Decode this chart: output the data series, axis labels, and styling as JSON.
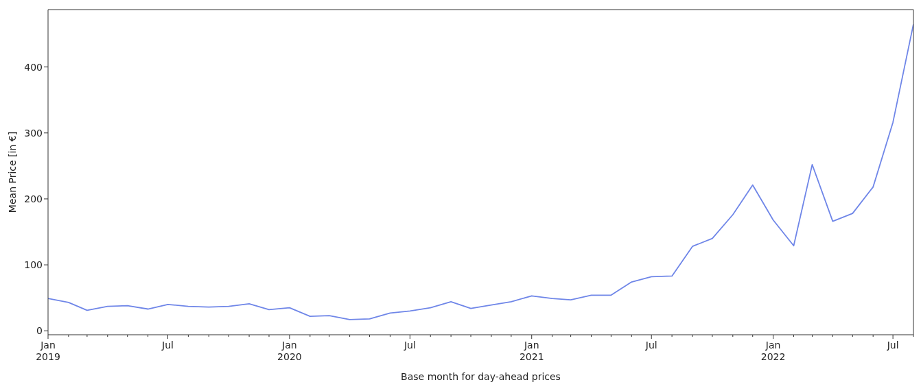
{
  "chart_data": {
    "type": "line",
    "xlabel": "Base month for day-ahead prices",
    "ylabel": "Mean Price [in €]",
    "x": [
      "2019-01",
      "2019-02",
      "2019-03",
      "2019-04",
      "2019-05",
      "2019-06",
      "2019-07",
      "2019-08",
      "2019-09",
      "2019-10",
      "2019-11",
      "2019-12",
      "2020-01",
      "2020-02",
      "2020-03",
      "2020-04",
      "2020-05",
      "2020-06",
      "2020-07",
      "2020-08",
      "2020-09",
      "2020-10",
      "2020-11",
      "2020-12",
      "2021-01",
      "2021-02",
      "2021-03",
      "2021-04",
      "2021-05",
      "2021-06",
      "2021-07",
      "2021-08",
      "2021-09",
      "2021-10",
      "2021-11",
      "2021-12",
      "2022-01",
      "2022-02",
      "2022-03",
      "2022-04",
      "2022-05",
      "2022-06",
      "2022-07",
      "2022-08"
    ],
    "series": [
      {
        "color": "#6f86e8",
        "values": [
          49,
          43,
          31,
          37,
          38,
          33,
          40,
          37,
          36,
          37,
          41,
          32,
          35,
          22,
          23,
          17,
          18,
          27,
          30,
          35,
          44,
          34,
          39,
          44,
          53,
          49,
          47,
          54,
          54,
          74,
          82,
          83,
          128,
          140,
          176,
          221,
          168,
          129,
          252,
          166,
          178,
          218,
          316,
          465
        ]
      }
    ],
    "xlim": [
      "2019-01",
      "2022-08"
    ],
    "xticks": [
      {
        "value": "2019-01",
        "label": "Jan\n2019"
      },
      {
        "value": "2019-02",
        "label": null
      },
      {
        "value": "2019-03",
        "label": null
      },
      {
        "value": "2019-04",
        "label": null
      },
      {
        "value": "2019-05",
        "label": null
      },
      {
        "value": "2019-06",
        "label": null
      },
      {
        "value": "2019-07",
        "label": "Jul"
      },
      {
        "value": "2019-08",
        "label": null
      },
      {
        "value": "2019-09",
        "label": null
      },
      {
        "value": "2019-10",
        "label": null
      },
      {
        "value": "2019-11",
        "label": null
      },
      {
        "value": "2019-12",
        "label": null
      },
      {
        "value": "2020-01",
        "label": "Jan\n2020"
      },
      {
        "value": "2020-02",
        "label": null
      },
      {
        "value": "2020-03",
        "label": null
      },
      {
        "value": "2020-04",
        "label": null
      },
      {
        "value": "2020-05",
        "label": null
      },
      {
        "value": "2020-06",
        "label": null
      },
      {
        "value": "2020-07",
        "label": "Jul"
      },
      {
        "value": "2020-08",
        "label": null
      },
      {
        "value": "2020-09",
        "label": null
      },
      {
        "value": "2020-10",
        "label": null
      },
      {
        "value": "2020-11",
        "label": null
      },
      {
        "value": "2020-12",
        "label": null
      },
      {
        "value": "2021-01",
        "label": "Jan\n2021"
      },
      {
        "value": "2021-02",
        "label": null
      },
      {
        "value": "2021-03",
        "label": null
      },
      {
        "value": "2021-04",
        "label": null
      },
      {
        "value": "2021-05",
        "label": null
      },
      {
        "value": "2021-06",
        "label": null
      },
      {
        "value": "2021-07",
        "label": "Jul"
      },
      {
        "value": "2021-08",
        "label": null
      },
      {
        "value": "2021-09",
        "label": null
      },
      {
        "value": "2021-10",
        "label": null
      },
      {
        "value": "2021-11",
        "label": null
      },
      {
        "value": "2021-12",
        "label": null
      },
      {
        "value": "2022-01",
        "label": "Jan\n2022"
      },
      {
        "value": "2022-02",
        "label": null
      },
      {
        "value": "2022-03",
        "label": null
      },
      {
        "value": "2022-04",
        "label": null
      },
      {
        "value": "2022-05",
        "label": null
      },
      {
        "value": "2022-06",
        "label": null
      },
      {
        "value": "2022-07",
        "label": "Jul"
      },
      {
        "value": "2022-08",
        "label": null
      }
    ],
    "ylim": [
      -6,
      487
    ],
    "yticks": [
      0,
      100,
      200,
      300,
      400
    ],
    "grid": false,
    "legend": false,
    "marker": "none",
    "line_style": "solid"
  }
}
